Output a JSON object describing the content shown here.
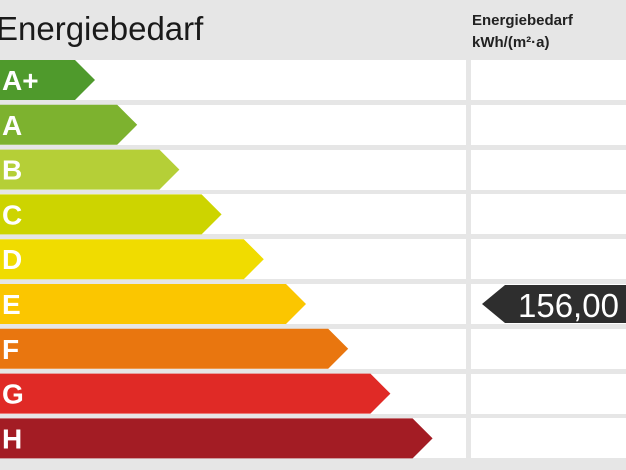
{
  "chart_data": {
    "type": "energy-label",
    "title": "Energiebedarf",
    "column_header": [
      "Energiebedarf",
      "kWh/(m²·a)"
    ],
    "classes": [
      {
        "label": "A+",
        "color": "#4f9a2c"
      },
      {
        "label": "A",
        "color": "#7db22f"
      },
      {
        "label": "B",
        "color": "#b5cf37"
      },
      {
        "label": "C",
        "color": "#cdd400"
      },
      {
        "label": "D",
        "color": "#f0dc00"
      },
      {
        "label": "E",
        "color": "#fbc600"
      },
      {
        "label": "F",
        "color": "#e9760f"
      },
      {
        "label": "G",
        "color": "#e02a26"
      },
      {
        "label": "H",
        "color": "#a31c24"
      }
    ],
    "marker": {
      "value": "156,00",
      "class": "E",
      "color": "#2e2e2e"
    }
  }
}
